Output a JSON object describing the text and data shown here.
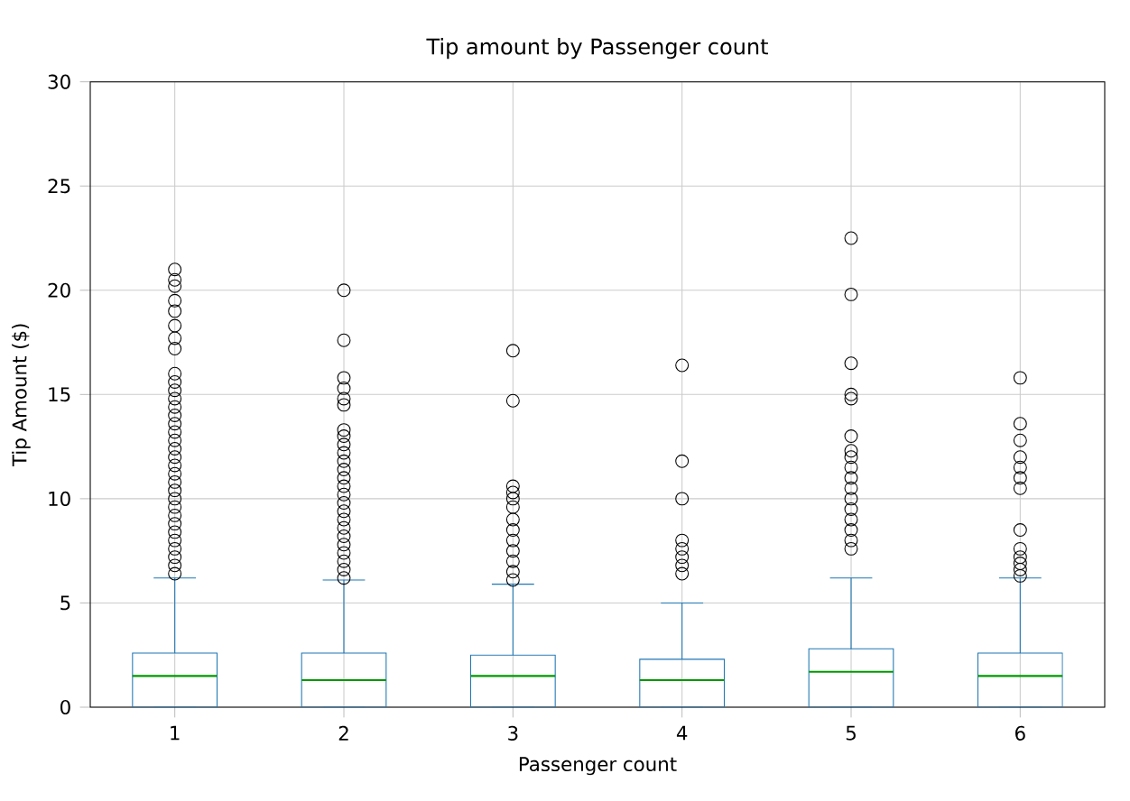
{
  "chart_data": {
    "type": "box",
    "title": "Tip amount by Passenger count",
    "xlabel": "Passenger count",
    "ylabel": "Tip Amount ($)",
    "categories": [
      "1",
      "2",
      "3",
      "4",
      "5",
      "6"
    ],
    "color": "#1f77b4",
    "ylim": [
      0,
      30
    ],
    "yticks": [
      0,
      5,
      10,
      15,
      20,
      25,
      30
    ],
    "grid": true,
    "boxes": [
      {
        "low": 0,
        "q1": 0,
        "median": 1.5,
        "q3": 2.6,
        "high": 6.2,
        "outliers": [
          6.4,
          6.8,
          7.2,
          7.6,
          8.0,
          8.4,
          8.8,
          9.2,
          9.6,
          10.0,
          10.4,
          10.8,
          11.2,
          11.6,
          12.0,
          12.4,
          12.8,
          13.2,
          13.6,
          14.0,
          14.4,
          14.8,
          15.2,
          15.6,
          16.0,
          17.2,
          17.7,
          18.3,
          19.0,
          19.5,
          20.2,
          20.5,
          21.0
        ]
      },
      {
        "low": 0,
        "q1": 0,
        "median": 1.3,
        "q3": 2.6,
        "high": 6.1,
        "outliers": [
          6.2,
          6.6,
          7.0,
          7.4,
          7.8,
          8.2,
          8.6,
          9.0,
          9.4,
          9.8,
          10.2,
          10.6,
          11.0,
          11.4,
          11.8,
          12.2,
          12.6,
          13.0,
          13.3,
          14.5,
          14.8,
          15.3,
          15.8,
          17.6,
          20.0
        ]
      },
      {
        "low": 0,
        "q1": 0,
        "median": 1.5,
        "q3": 2.5,
        "high": 5.9,
        "outliers": [
          6.1,
          6.5,
          7.0,
          7.5,
          8.0,
          8.5,
          9.0,
          9.6,
          10.0,
          10.3,
          10.6,
          14.7,
          17.1
        ]
      },
      {
        "low": 0,
        "q1": 0,
        "median": 1.3,
        "q3": 2.3,
        "high": 5.0,
        "outliers": [
          6.4,
          6.8,
          7.2,
          7.6,
          8.0,
          10.0,
          11.8,
          16.4
        ]
      },
      {
        "low": 0,
        "q1": 0,
        "median": 1.7,
        "q3": 2.8,
        "high": 6.2,
        "outliers": [
          7.6,
          8.0,
          8.5,
          9.0,
          9.5,
          10.0,
          10.5,
          11.0,
          11.5,
          12.0,
          12.3,
          13.0,
          14.8,
          15.0,
          16.5,
          19.8,
          22.5
        ]
      },
      {
        "low": 0,
        "q1": 0,
        "median": 1.5,
        "q3": 2.6,
        "high": 6.2,
        "outliers": [
          6.3,
          6.6,
          6.9,
          7.2,
          7.6,
          8.5,
          10.5,
          11.0,
          11.5,
          12.0,
          12.8,
          13.6,
          15.8
        ]
      }
    ]
  }
}
